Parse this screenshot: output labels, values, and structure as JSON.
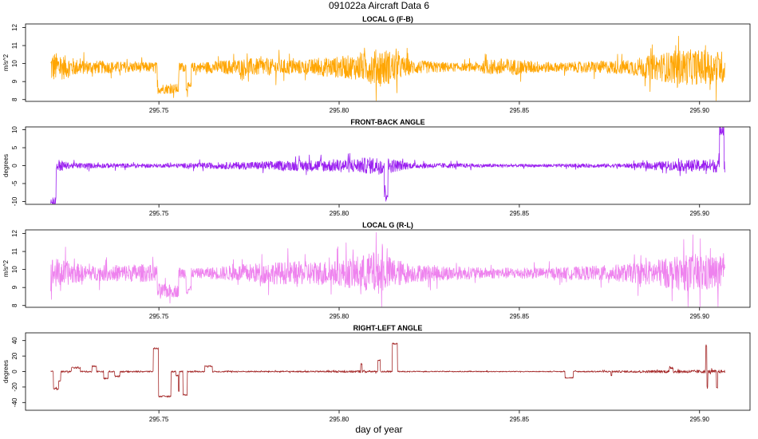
{
  "title": "091022a   Aircraft Data 6",
  "xlabel": "day of year",
  "colors": {
    "orange": "#ffa500",
    "purple": "#9a1ff0",
    "violet": "#ee82ee",
    "brown": "#a52a2a"
  },
  "chart_data": [
    {
      "type": "line",
      "title": "LOCAL G (F-B)",
      "xlabel": "",
      "ylabel": "m/s^2",
      "xlim": [
        295.713,
        295.914
      ],
      "ylim": [
        7.9,
        12.2
      ],
      "xticks": [
        "295.75",
        "295.80",
        "295.85",
        "295.90"
      ],
      "yticks": [
        "8",
        "9",
        "10",
        "11",
        "12"
      ],
      "data_x": [
        295.72,
        295.907
      ],
      "color": "orange",
      "baseline": 9.8,
      "noise_profile": [
        {
          "x": 295.72,
          "amp": 0.9
        },
        {
          "x": 295.728,
          "amp": 0.4
        },
        {
          "x": 295.74,
          "amp": 0.3
        },
        {
          "x": 295.76,
          "amp": 0.25
        },
        {
          "x": 295.775,
          "amp": 0.5
        },
        {
          "x": 295.79,
          "amp": 0.4
        },
        {
          "x": 295.805,
          "amp": 0.7
        },
        {
          "x": 295.812,
          "amp": 1.1
        },
        {
          "x": 295.82,
          "amp": 0.4
        },
        {
          "x": 295.835,
          "amp": 0.2
        },
        {
          "x": 295.845,
          "amp": 0.5
        },
        {
          "x": 295.86,
          "amp": 0.25
        },
        {
          "x": 295.88,
          "amp": 0.4
        },
        {
          "x": 295.895,
          "amp": 1.0
        },
        {
          "x": 295.907,
          "amp": 0.9
        }
      ],
      "events": [
        {
          "x0": 295.7495,
          "x1": 295.7555,
          "y": 8.6
        },
        {
          "x0": 295.7575,
          "x1": 295.759,
          "y": 8.7
        }
      ]
    },
    {
      "type": "line",
      "title": "FRONT-BACK ANGLE",
      "xlabel": "",
      "ylabel": "degrees",
      "xlim": [
        295.713,
        295.914
      ],
      "ylim": [
        -10.8,
        10.8
      ],
      "xticks": [
        "295.75",
        "295.80",
        "295.85",
        "295.90"
      ],
      "yticks": [
        "-10",
        "-5",
        "0",
        "5",
        "10"
      ],
      "data_x": [
        295.72,
        295.907
      ],
      "color": "purple",
      "baseline": 0,
      "noise_profile": [
        {
          "x": 295.72,
          "amp": 2.5
        },
        {
          "x": 295.725,
          "amp": 0.8
        },
        {
          "x": 295.75,
          "amp": 0.5
        },
        {
          "x": 295.78,
          "amp": 1.2
        },
        {
          "x": 295.8,
          "amp": 1.8
        },
        {
          "x": 295.812,
          "amp": 2.5
        },
        {
          "x": 295.82,
          "amp": 0.8
        },
        {
          "x": 295.85,
          "amp": 0.4
        },
        {
          "x": 295.88,
          "amp": 0.6
        },
        {
          "x": 295.895,
          "amp": 1.5
        },
        {
          "x": 295.907,
          "amp": 2.0
        }
      ],
      "events": [
        {
          "x0": 295.72,
          "x1": 295.7215,
          "y": -10.5
        },
        {
          "x0": 295.9055,
          "x1": 295.9068,
          "y": 10.5
        },
        {
          "x0": 295.8125,
          "x1": 295.8135,
          "y": -7.5
        }
      ]
    },
    {
      "type": "line",
      "title": "LOCAL G (R-L)",
      "xlabel": "",
      "ylabel": "m/s^2",
      "xlim": [
        295.713,
        295.914
      ],
      "ylim": [
        7.9,
        12.2
      ],
      "xticks": [
        "295.75",
        "295.80",
        "295.85",
        "295.90"
      ],
      "yticks": [
        "8",
        "9",
        "10",
        "11",
        "12"
      ],
      "data_x": [
        295.72,
        295.907
      ],
      "color": "violet",
      "baseline": 9.8,
      "noise_profile": [
        {
          "x": 295.72,
          "amp": 0.9
        },
        {
          "x": 295.73,
          "amp": 0.4
        },
        {
          "x": 295.745,
          "amp": 0.5
        },
        {
          "x": 295.76,
          "amp": 0.25
        },
        {
          "x": 295.78,
          "amp": 0.6
        },
        {
          "x": 295.8,
          "amp": 0.7
        },
        {
          "x": 295.81,
          "amp": 1.2
        },
        {
          "x": 295.82,
          "amp": 0.5
        },
        {
          "x": 295.84,
          "amp": 0.3
        },
        {
          "x": 295.86,
          "amp": 0.3
        },
        {
          "x": 295.88,
          "amp": 0.5
        },
        {
          "x": 295.9,
          "amp": 1.1
        },
        {
          "x": 295.907,
          "amp": 0.9
        }
      ],
      "events": [
        {
          "x0": 295.7495,
          "x1": 295.7555,
          "y": 8.8
        },
        {
          "x0": 295.7575,
          "x1": 295.759,
          "y": 8.9
        }
      ]
    },
    {
      "type": "line",
      "title": "RIGHT-LEFT ANGLE",
      "xlabel": "",
      "ylabel": "degrees",
      "xlim": [
        295.713,
        295.914
      ],
      "ylim": [
        -50,
        50
      ],
      "xticks": [
        "295.75",
        "295.80",
        "295.85",
        "295.90"
      ],
      "yticks": [
        "-40",
        "-20",
        "0",
        "20",
        "40"
      ],
      "data_x": [
        295.72,
        295.907
      ],
      "color": "brown",
      "baseline": 0,
      "noise_profile": [
        {
          "x": 295.72,
          "amp": 1.0
        },
        {
          "x": 295.79,
          "amp": 0.8
        },
        {
          "x": 295.805,
          "amp": 1.5
        },
        {
          "x": 295.82,
          "amp": 0.6
        },
        {
          "x": 295.86,
          "amp": 0.5
        },
        {
          "x": 295.895,
          "amp": 2.0
        },
        {
          "x": 295.907,
          "amp": 2.0
        }
      ],
      "steps": [
        [
          295.72,
          0
        ],
        [
          295.7207,
          -22
        ],
        [
          295.7217,
          -22
        ],
        [
          295.7222,
          -12
        ],
        [
          295.7228,
          0
        ],
        [
          295.7255,
          0
        ],
        [
          295.7257,
          5
        ],
        [
          295.728,
          5
        ],
        [
          295.7282,
          0
        ],
        [
          295.7312,
          0
        ],
        [
          295.7314,
          7
        ],
        [
          295.7325,
          7
        ],
        [
          295.7327,
          0
        ],
        [
          295.7345,
          0
        ],
        [
          295.7347,
          -9
        ],
        [
          295.7357,
          -9
        ],
        [
          295.7359,
          0
        ],
        [
          295.7375,
          0
        ],
        [
          295.7377,
          -6
        ],
        [
          295.739,
          -6
        ],
        [
          295.7392,
          0
        ],
        [
          295.7482,
          0
        ],
        [
          295.7484,
          30
        ],
        [
          295.7497,
          30
        ],
        [
          295.7499,
          -32
        ],
        [
          295.7532,
          -32
        ],
        [
          295.7534,
          0
        ],
        [
          295.7545,
          0
        ],
        [
          295.7547,
          -5
        ],
        [
          295.7554,
          -25
        ],
        [
          295.7557,
          0
        ],
        [
          295.7565,
          0
        ],
        [
          295.7567,
          -30
        ],
        [
          295.7577,
          -30
        ],
        [
          295.7579,
          0
        ],
        [
          295.7625,
          0
        ],
        [
          295.7627,
          7
        ],
        [
          295.7646,
          7
        ],
        [
          295.7648,
          0
        ],
        [
          295.8058,
          0
        ],
        [
          295.806,
          10
        ],
        [
          295.8064,
          0
        ],
        [
          295.8105,
          0
        ],
        [
          295.8107,
          15
        ],
        [
          295.8112,
          15
        ],
        [
          295.8114,
          0
        ],
        [
          295.8145,
          0
        ],
        [
          295.8147,
          36
        ],
        [
          295.816,
          36
        ],
        [
          295.8162,
          0
        ],
        [
          295.8625,
          0
        ],
        [
          295.8627,
          -8
        ],
        [
          295.8648,
          -8
        ],
        [
          295.865,
          0
        ],
        [
          295.8752,
          0
        ],
        [
          295.8754,
          -5
        ],
        [
          295.8757,
          0
        ],
        [
          295.8915,
          0
        ],
        [
          295.8917,
          5
        ],
        [
          295.8925,
          5
        ],
        [
          295.8927,
          0
        ],
        [
          295.9015,
          0
        ],
        [
          295.9017,
          33
        ],
        [
          295.902,
          -20
        ],
        [
          295.9023,
          0
        ],
        [
          295.9045,
          0
        ],
        [
          295.9047,
          -22
        ],
        [
          295.905,
          0
        ],
        [
          295.907,
          0
        ]
      ]
    }
  ]
}
